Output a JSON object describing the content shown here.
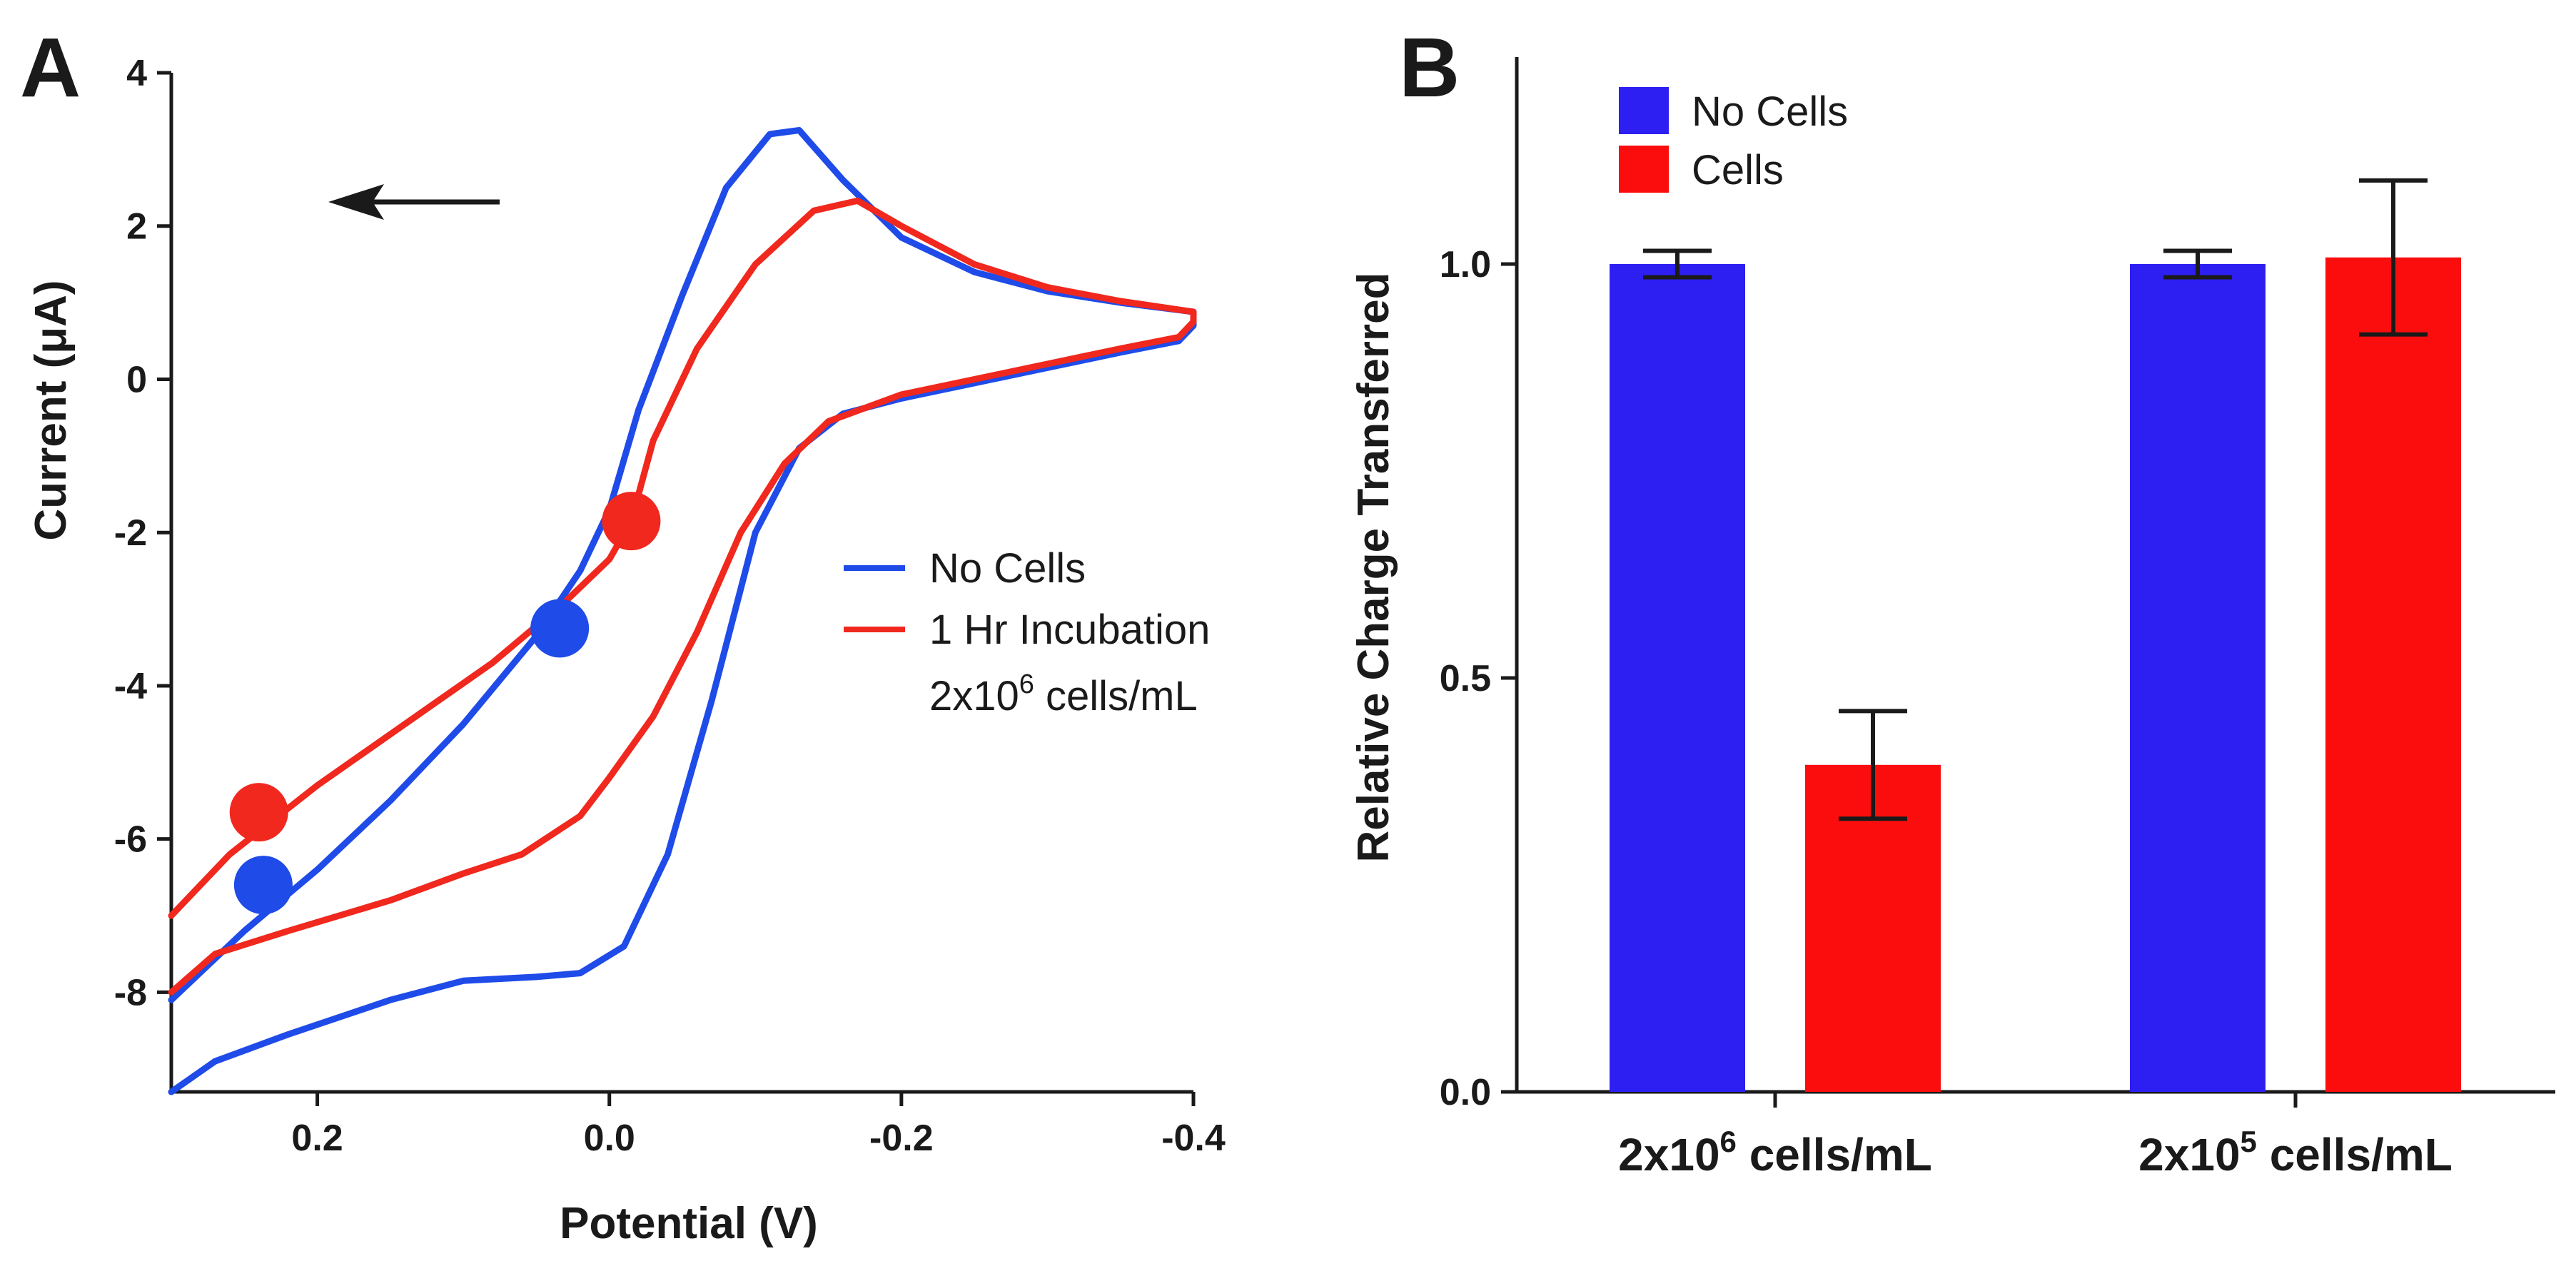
{
  "colors": {
    "no_cells": "#1f4be8",
    "cells": "#f0281e",
    "bar_blue": "#2d1ff2",
    "bar_red": "#fb0d0d",
    "axis": "#1a1a1a"
  },
  "chart_data": [
    {
      "panel": "A",
      "type": "line",
      "xlabel": "Potential (V)",
      "ylabel": "Current  (μA)",
      "xlim": [
        0.3,
        -0.4
      ],
      "ylim": [
        -9.3,
        4
      ],
      "xticks": [
        0.2,
        0.0,
        -0.2,
        -0.4
      ],
      "xtick_labels": [
        "0.2",
        "0.0",
        "-0.2",
        "-0.4"
      ],
      "yticks": [
        4,
        2,
        0,
        -2,
        -4,
        -6,
        -8
      ],
      "ytick_labels": [
        "4",
        "2",
        "0",
        "-2",
        "-4",
        "-6",
        "-8"
      ],
      "annotation": "arrow pointing left (scan direction)",
      "legend": {
        "position": "right",
        "entries": [
          {
            "label": "No Cells",
            "series": 0
          },
          {
            "label": "1 Hr Incubation",
            "series": 1,
            "subtext_main": "2x10",
            "subtext_sup": "6",
            "subtext_tail": " cells/mL"
          }
        ]
      },
      "series": [
        {
          "name": "No Cells",
          "points": [
            [
              0.3,
              -9.3
            ],
            [
              0.27,
              -8.9
            ],
            [
              0.22,
              -8.55
            ],
            [
              0.15,
              -8.1
            ],
            [
              0.1,
              -7.85
            ],
            [
              0.05,
              -7.8
            ],
            [
              0.02,
              -7.75
            ],
            [
              -0.01,
              -7.4
            ],
            [
              -0.04,
              -6.2
            ],
            [
              -0.07,
              -4.2
            ],
            [
              -0.1,
              -2.0
            ],
            [
              -0.13,
              -0.9
            ],
            [
              -0.16,
              -0.45
            ],
            [
              -0.2,
              -0.25
            ],
            [
              -0.25,
              -0.05
            ],
            [
              -0.3,
              0.15
            ],
            [
              -0.35,
              0.35
            ],
            [
              -0.39,
              0.5
            ],
            [
              -0.4,
              0.7
            ],
            [
              -0.4,
              0.88
            ],
            [
              -0.35,
              1.0
            ],
            [
              -0.3,
              1.15
            ],
            [
              -0.25,
              1.4
            ],
            [
              -0.2,
              1.85
            ],
            [
              -0.16,
              2.6
            ],
            [
              -0.13,
              3.25
            ],
            [
              -0.11,
              3.2
            ],
            [
              -0.08,
              2.5
            ],
            [
              -0.05,
              1.1
            ],
            [
              -0.02,
              -0.4
            ],
            [
              0.0,
              -1.7
            ],
            [
              0.02,
              -2.5
            ],
            [
              0.05,
              -3.35
            ],
            [
              0.1,
              -4.5
            ],
            [
              0.15,
              -5.5
            ],
            [
              0.2,
              -6.4
            ],
            [
              0.25,
              -7.2
            ],
            [
              0.3,
              -8.1
            ]
          ],
          "markers": [
            [
              0.034,
              -3.25
            ],
            [
              0.237,
              -6.6
            ]
          ]
        },
        {
          "name": "1 Hr Incubation",
          "points": [
            [
              0.3,
              -8.0
            ],
            [
              0.27,
              -7.5
            ],
            [
              0.22,
              -7.2
            ],
            [
              0.15,
              -6.8
            ],
            [
              0.1,
              -6.45
            ],
            [
              0.06,
              -6.2
            ],
            [
              0.02,
              -5.7
            ],
            [
              0.0,
              -5.2
            ],
            [
              -0.03,
              -4.4
            ],
            [
              -0.06,
              -3.3
            ],
            [
              -0.09,
              -2.0
            ],
            [
              -0.12,
              -1.1
            ],
            [
              -0.15,
              -0.55
            ],
            [
              -0.2,
              -0.2
            ],
            [
              -0.25,
              0.0
            ],
            [
              -0.3,
              0.2
            ],
            [
              -0.35,
              0.4
            ],
            [
              -0.39,
              0.55
            ],
            [
              -0.4,
              0.75
            ],
            [
              -0.4,
              0.88
            ],
            [
              -0.35,
              1.02
            ],
            [
              -0.3,
              1.2
            ],
            [
              -0.25,
              1.5
            ],
            [
              -0.2,
              2.0
            ],
            [
              -0.17,
              2.33
            ],
            [
              -0.14,
              2.2
            ],
            [
              -0.1,
              1.5
            ],
            [
              -0.06,
              0.4
            ],
            [
              -0.03,
              -0.8
            ],
            [
              -0.015,
              -1.85
            ],
            [
              0.0,
              -2.35
            ],
            [
              0.03,
              -2.9
            ],
            [
              0.08,
              -3.7
            ],
            [
              0.14,
              -4.5
            ],
            [
              0.2,
              -5.3
            ],
            [
              0.26,
              -6.2
            ],
            [
              0.3,
              -7.0
            ]
          ],
          "markers": [
            [
              -0.015,
              -1.85
            ],
            [
              0.24,
              -5.65
            ]
          ]
        }
      ]
    },
    {
      "panel": "B",
      "type": "bar",
      "title": "",
      "xlabel": "",
      "ylabel": "Relative Charge Transferred",
      "ylim": [
        0,
        1.25
      ],
      "yticks": [
        0.0,
        0.5,
        1.0
      ],
      "ytick_labels": [
        "0.0",
        "0.5",
        "1.0"
      ],
      "categories": [
        {
          "main": "2x10",
          "sup": "6",
          "tail": " cells/mL"
        },
        {
          "main": "2x10",
          "sup": "5",
          "tail": " cells/mL"
        }
      ],
      "legend": {
        "position": "top-left",
        "entries": [
          "No Cells",
          "Cells"
        ]
      },
      "series": [
        {
          "name": "No Cells",
          "values": [
            1.0,
            1.0
          ],
          "errors": [
            0.016,
            0.016
          ]
        },
        {
          "name": "Cells",
          "values": [
            0.395,
            1.008
          ],
          "errors": [
            0.065,
            0.093
          ]
        }
      ]
    }
  ]
}
